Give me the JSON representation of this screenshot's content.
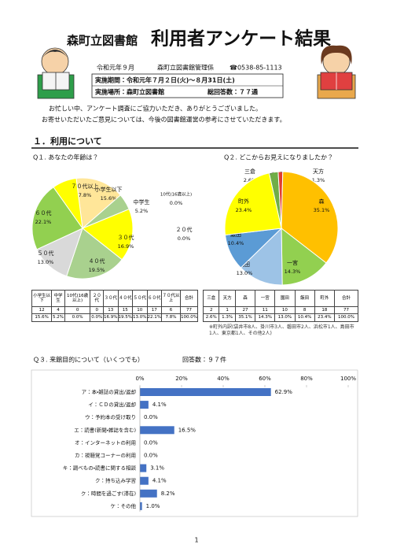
{
  "header": {
    "library": "森町立図書館",
    "title": "利用者アンケート結果",
    "date": "令和元年９月",
    "department": "森町立図書館管理係",
    "phone": "☎0538-85-1113",
    "period": "実施期間：令和元年７月２日(火)～８月31日(土)",
    "place": "実施場所：森町立図書館",
    "responses": "総回答数：７７通"
  },
  "intro": [
    "お忙しい中、アンケート調査にご協力いただき、ありがとうございました。",
    "お寄せいただいたご意見については、今後の図書館運営の参考にさせていただきます。"
  ],
  "section": "１．利用について",
  "chart_data": [
    {
      "type": "pie",
      "title": "Q１. あなたの年齢は？",
      "categories": [
        "小学生以下",
        "中学生",
        "10代(16歳以上)",
        "２０代",
        "３０代",
        "４０代",
        "５０代",
        "６０代",
        "７０代以上"
      ],
      "values": [
        15.6,
        5.2,
        0.0,
        0.0,
        16.9,
        19.5,
        13.0,
        22.1,
        7.8
      ],
      "value_labels": [
        "15.6%",
        "5.2%",
        "0.0%",
        "0.0%",
        "16.9%",
        "19.5%",
        "13.0%",
        "22.1%",
        "7.8%"
      ],
      "colors": [
        "#ffe699",
        "#a9d18e",
        "#ffc000",
        "#bdd7ee",
        "#ffff00",
        "#a9d18e",
        "#d9d9d9",
        "#92d050",
        "#ffff00"
      ],
      "counts": [
        12,
        4,
        0,
        0,
        13,
        15,
        10,
        17,
        6
      ],
      "total_label": "合計",
      "total": 77,
      "total_value_label": "100.0%"
    },
    {
      "type": "pie",
      "title": "Q２. どこからお見えになりましたか？",
      "categories": [
        "三倉",
        "天方",
        "森",
        "一宮",
        "園田",
        "飯田",
        "町外"
      ],
      "values": [
        2.6,
        1.3,
        35.1,
        14.3,
        13.0,
        10.4,
        23.4
      ],
      "value_labels": [
        "2.6%",
        "1.3%",
        "35.1%",
        "14.3%",
        "13.0%",
        "10.4%",
        "23.4%"
      ],
      "colors": [
        "#70ad47",
        "#e03c31",
        "#ffc000",
        "#92d050",
        "#9dc3e6",
        "#5b9bd5",
        "#ffff00"
      ],
      "counts": [
        2,
        1,
        27,
        11,
        10,
        8,
        18
      ],
      "total_label": "合計",
      "total": 77,
      "total_value_label": "100.0%",
      "note": "※町外内訳(袋井市8人、掛川市3人、磐田市2人、浜松市1人、島田市1人、東京都1人、その他2人)"
    },
    {
      "type": "bar",
      "orientation": "horizontal",
      "title": "Ｑ３. 来館目的について（いくつでも）",
      "subtitle": "回答数：９７件",
      "categories": [
        "ア：本・雑誌の貸出/返却",
        "イ：ＣＤの貸出/返却",
        "ウ：予約本の受け取り",
        "エ：読書(新聞・雑誌を含む)",
        "オ：インターネットの利用",
        "カ：視聴覚コーナーの利用",
        "キ：調べもの・読書に関する相談",
        "ク：持ち込み学習",
        "ク：時間を過ごす(滞在)",
        "ケ：その他"
      ],
      "values": [
        62.9,
        4.1,
        0.0,
        16.5,
        0.0,
        0.0,
        3.1,
        4.1,
        8.2,
        1.0
      ],
      "value_labels": [
        "62.9%",
        "4.1%",
        "0.0%",
        "16.5%",
        "0.0%",
        "0.0%",
        "3.1%",
        "4.1%",
        "8.2%",
        "1.0%"
      ],
      "color": "#4472c4",
      "xlim": [
        0,
        100
      ],
      "xticks": [
        {
          "value": 0,
          "label": "0%"
        },
        {
          "value": 20,
          "label": "20%"
        },
        {
          "value": 40,
          "label": "40%"
        },
        {
          "value": 60,
          "label": "60%"
        },
        {
          "value": 80,
          "label": "80%"
        },
        {
          "value": 100,
          "label": "100%"
        }
      ]
    }
  ],
  "page_number": "1"
}
